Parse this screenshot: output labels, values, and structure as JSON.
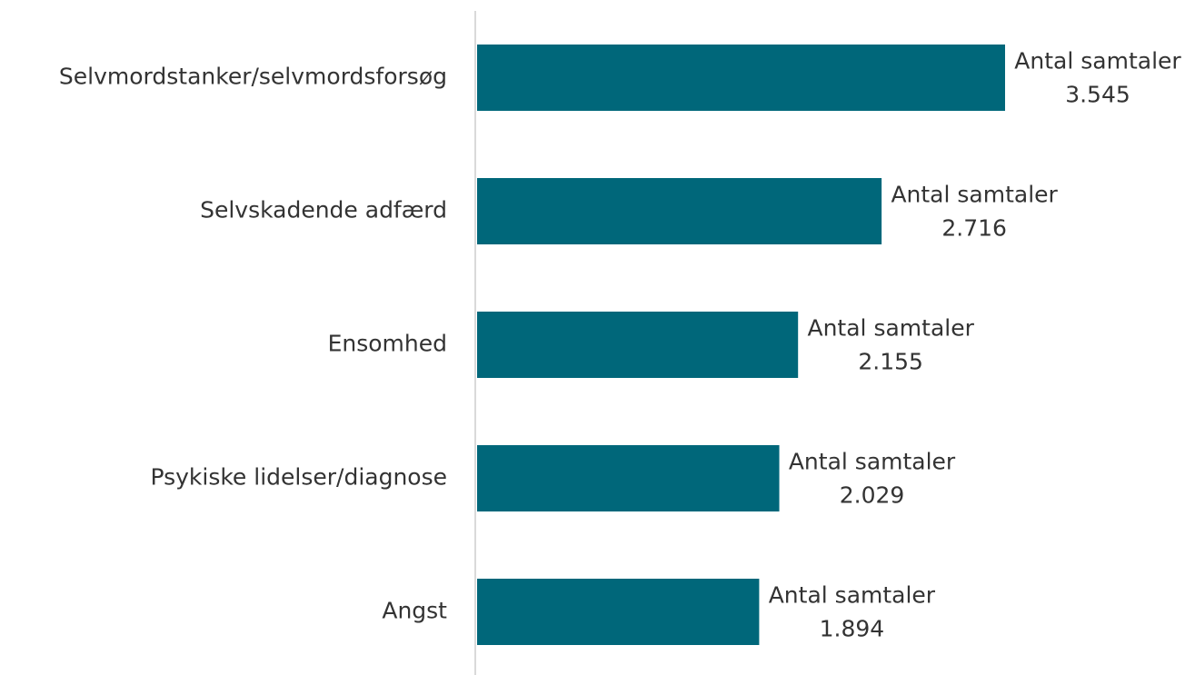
{
  "chart_data": {
    "type": "barh",
    "categories": [
      "Selvmordstanker/selvmordsforsøg",
      "Selvskadende adfærd",
      "Ensomhed",
      "Psykiske lidelser/diagnose",
      "Angst"
    ],
    "series": [
      {
        "name": "Antal samtaler",
        "color": "#00677a",
        "values": [
          3545,
          2716,
          2155,
          2029,
          1894
        ],
        "value_labels": [
          "3.545",
          "2.716",
          "2.155",
          "2.029",
          "1.894"
        ]
      }
    ]
  }
}
